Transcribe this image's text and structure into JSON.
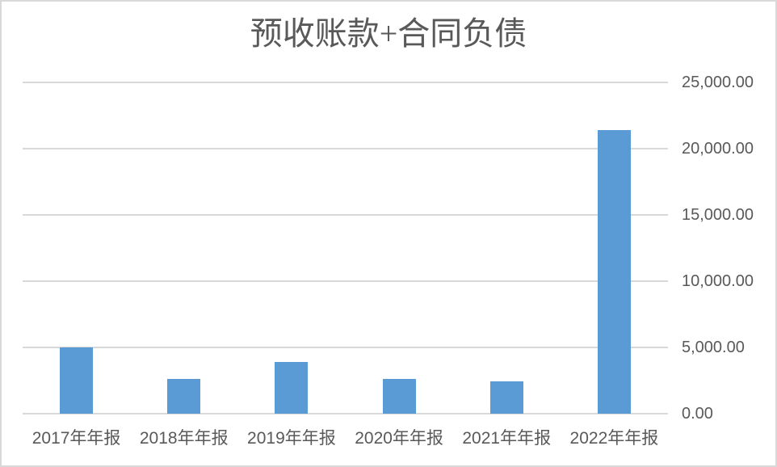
{
  "chart_data": {
    "type": "bar",
    "title": "预收账款+合同负债",
    "categories": [
      "2017年年报",
      "2018年年报",
      "2019年年报",
      "2020年年报",
      "2021年年报",
      "2022年年报"
    ],
    "values": [
      5000,
      2600,
      3930,
      2600,
      2420,
      21400
    ],
    "xlabel": "",
    "ylabel": "",
    "ylim": [
      0,
      25000
    ],
    "yticks": [
      0,
      5000,
      10000,
      15000,
      20000,
      25000
    ],
    "ytick_labels": [
      "0.00",
      "5,000.00",
      "10,000.00",
      "15,000.00",
      "20,000.00",
      "25,000.00"
    ],
    "y_axis_position": "right",
    "grid": "horizontal",
    "legend": "none"
  },
  "colors": {
    "bar": "#5B9BD5",
    "gridline": "#D9D9D9",
    "axis_line": "#D9D9D9",
    "border": "#D9D9D9",
    "title_text": "#595959",
    "axis_text": "#595959",
    "background": "#FFFFFF"
  }
}
